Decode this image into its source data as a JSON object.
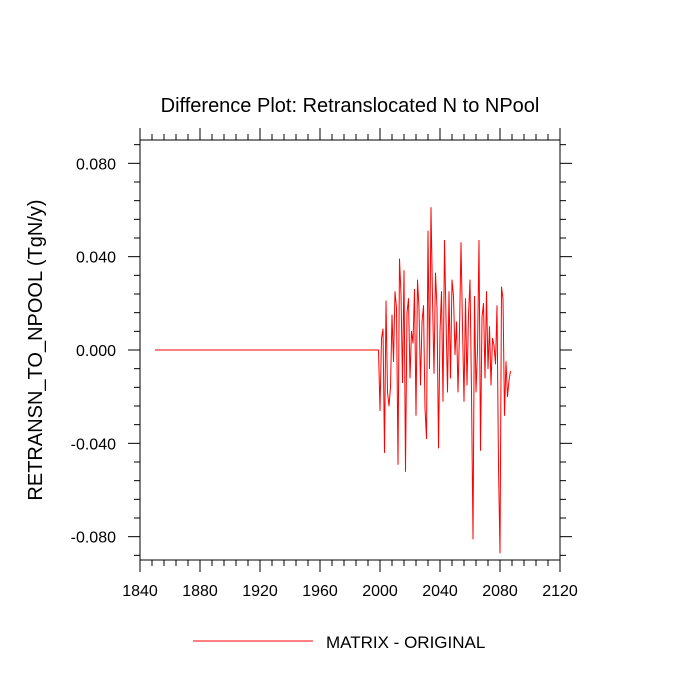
{
  "chart_data": {
    "type": "line",
    "title": "Difference Plot: Retranslocated N to NPool",
    "xlabel": "",
    "ylabel": "RETRANSN_TO_NPOOL  (TgN/y)",
    "xlim": [
      1840,
      2120
    ],
    "ylim": [
      -0.09,
      0.09
    ],
    "x_ticks": [
      1840,
      1880,
      1920,
      1960,
      2000,
      2040,
      2080,
      2120
    ],
    "x_tick_labels": [
      "1840",
      "1880",
      "1920",
      "1960",
      "2000",
      "2040",
      "2080",
      "2120"
    ],
    "y_ticks": [
      -0.08,
      -0.04,
      0.0,
      0.04,
      0.08
    ],
    "y_tick_labels": [
      "-0.080",
      "-0.040",
      "0.000",
      "0.040",
      "0.080"
    ],
    "grid": false,
    "legend_position": "bottom-center",
    "series": [
      {
        "name": "MATRIX - ORIGINAL",
        "color": "#ff0000",
        "x_start": 1850,
        "x_step": 1,
        "values": [
          0,
          0,
          0,
          0,
          0,
          0,
          0,
          0,
          0,
          0,
          0,
          0,
          0,
          0,
          0,
          0,
          0,
          0,
          0,
          0,
          0,
          0,
          0,
          0,
          0,
          0,
          0,
          0,
          0,
          0,
          0,
          0,
          0,
          0,
          0,
          0,
          0,
          0,
          0,
          0,
          0,
          0,
          0,
          0,
          0,
          0,
          0,
          0,
          0,
          0,
          0,
          0,
          0,
          0,
          0,
          0,
          0,
          0,
          0,
          0,
          0,
          0,
          0,
          0,
          0,
          0,
          0,
          0,
          0,
          0,
          0,
          0,
          0,
          0,
          0,
          0,
          0,
          0,
          0,
          0,
          0,
          0,
          0,
          0,
          0,
          0,
          0,
          0,
          0,
          0,
          0,
          0,
          0,
          0,
          0,
          0,
          0,
          0,
          0,
          0,
          0,
          0,
          0,
          0,
          0,
          0,
          0,
          0,
          0,
          0,
          0,
          0,
          0,
          0,
          0,
          0,
          0,
          0,
          0,
          0,
          0,
          0,
          0,
          0,
          0,
          0,
          0,
          0,
          0,
          0,
          0,
          0,
          0,
          0,
          0,
          0,
          0,
          0,
          0,
          0,
          0,
          0,
          0,
          0,
          0,
          0,
          0,
          0,
          0,
          0,
          -0.026,
          0.005,
          0.009,
          -0.044,
          0.021,
          -0.018,
          -0.024,
          -0.016,
          0.015,
          -0.005,
          0.025,
          0.018,
          -0.049,
          0.039,
          0.024,
          -0.014,
          0.034,
          -0.052,
          0.016,
          0.022,
          -0.012,
          0.008,
          0.003,
          0.026,
          -0.028,
          0.03,
          0.018,
          -0.015,
          0.012,
          0.019,
          -0.025,
          -0.038,
          0.051,
          -0.008,
          0.061,
          0.022,
          -0.01,
          0.033,
          0.018,
          -0.042,
          0.008,
          0.025,
          -0.022,
          0.047,
          0.014,
          -0.018,
          0.025,
          -0.012,
          0.03,
          0.023,
          -0.002,
          0.012,
          -0.018,
          0.008,
          0.046,
          0.01,
          -0.022,
          0.022,
          -0.015,
          0.015,
          0.03,
          -0.018,
          -0.081,
          0.023,
          -0.018,
          0.0,
          0.047,
          -0.043,
          0.014,
          0.02,
          -0.012,
          0.025,
          -0.008,
          0.01,
          -0.015,
          0.005,
          0.002,
          -0.006,
          0.019,
          -0.05,
          -0.087,
          0.027,
          0.022,
          -0.028,
          -0.005,
          -0.02,
          -0.013,
          -0.009
        ]
      }
    ]
  }
}
